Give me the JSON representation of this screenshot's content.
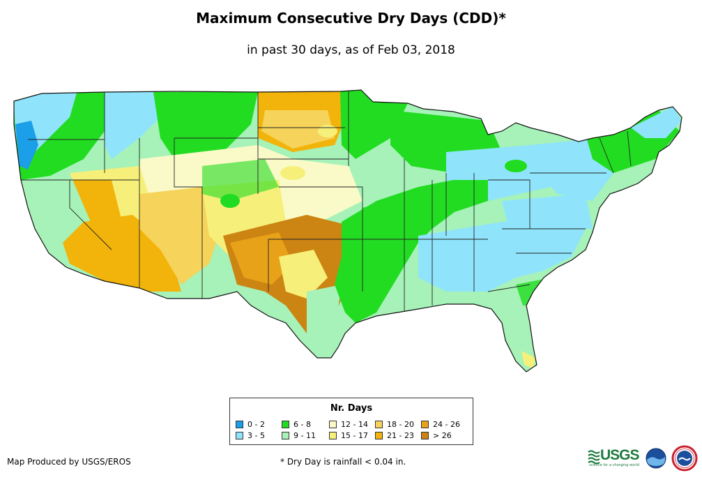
{
  "title": "Maximum Consecutive Dry Days (CDD)*",
  "subtitle": "in past 30 days, as of Feb 03, 2018",
  "legend": {
    "title": "Nr. Days",
    "items": [
      {
        "label": "0 - 2",
        "color": "#1a9fe8"
      },
      {
        "label": "3 - 5",
        "color": "#8fe4fb"
      },
      {
        "label": "6 - 8",
        "color": "#22dc22"
      },
      {
        "label": "9 - 11",
        "color": "#a6f2b8"
      },
      {
        "label": "12 - 14",
        "color": "#fafac8"
      },
      {
        "label": "15 - 17",
        "color": "#f6f07a"
      },
      {
        "label": "18 - 20",
        "color": "#f6d35a"
      },
      {
        "label": "21 - 23",
        "color": "#f2b30a"
      },
      {
        "label": "24 - 26",
        "color": "#e8a21a"
      },
      {
        "label": "> 26",
        "color": "#cc8412"
      }
    ]
  },
  "credit": "Map Produced by USGS/EROS",
  "footnote": "* Dry Day is rainfall < 0.04 in.",
  "logos": {
    "usgs": "USGS",
    "usgs_tagline": "science for a changing world",
    "noaa": "noaa"
  }
}
